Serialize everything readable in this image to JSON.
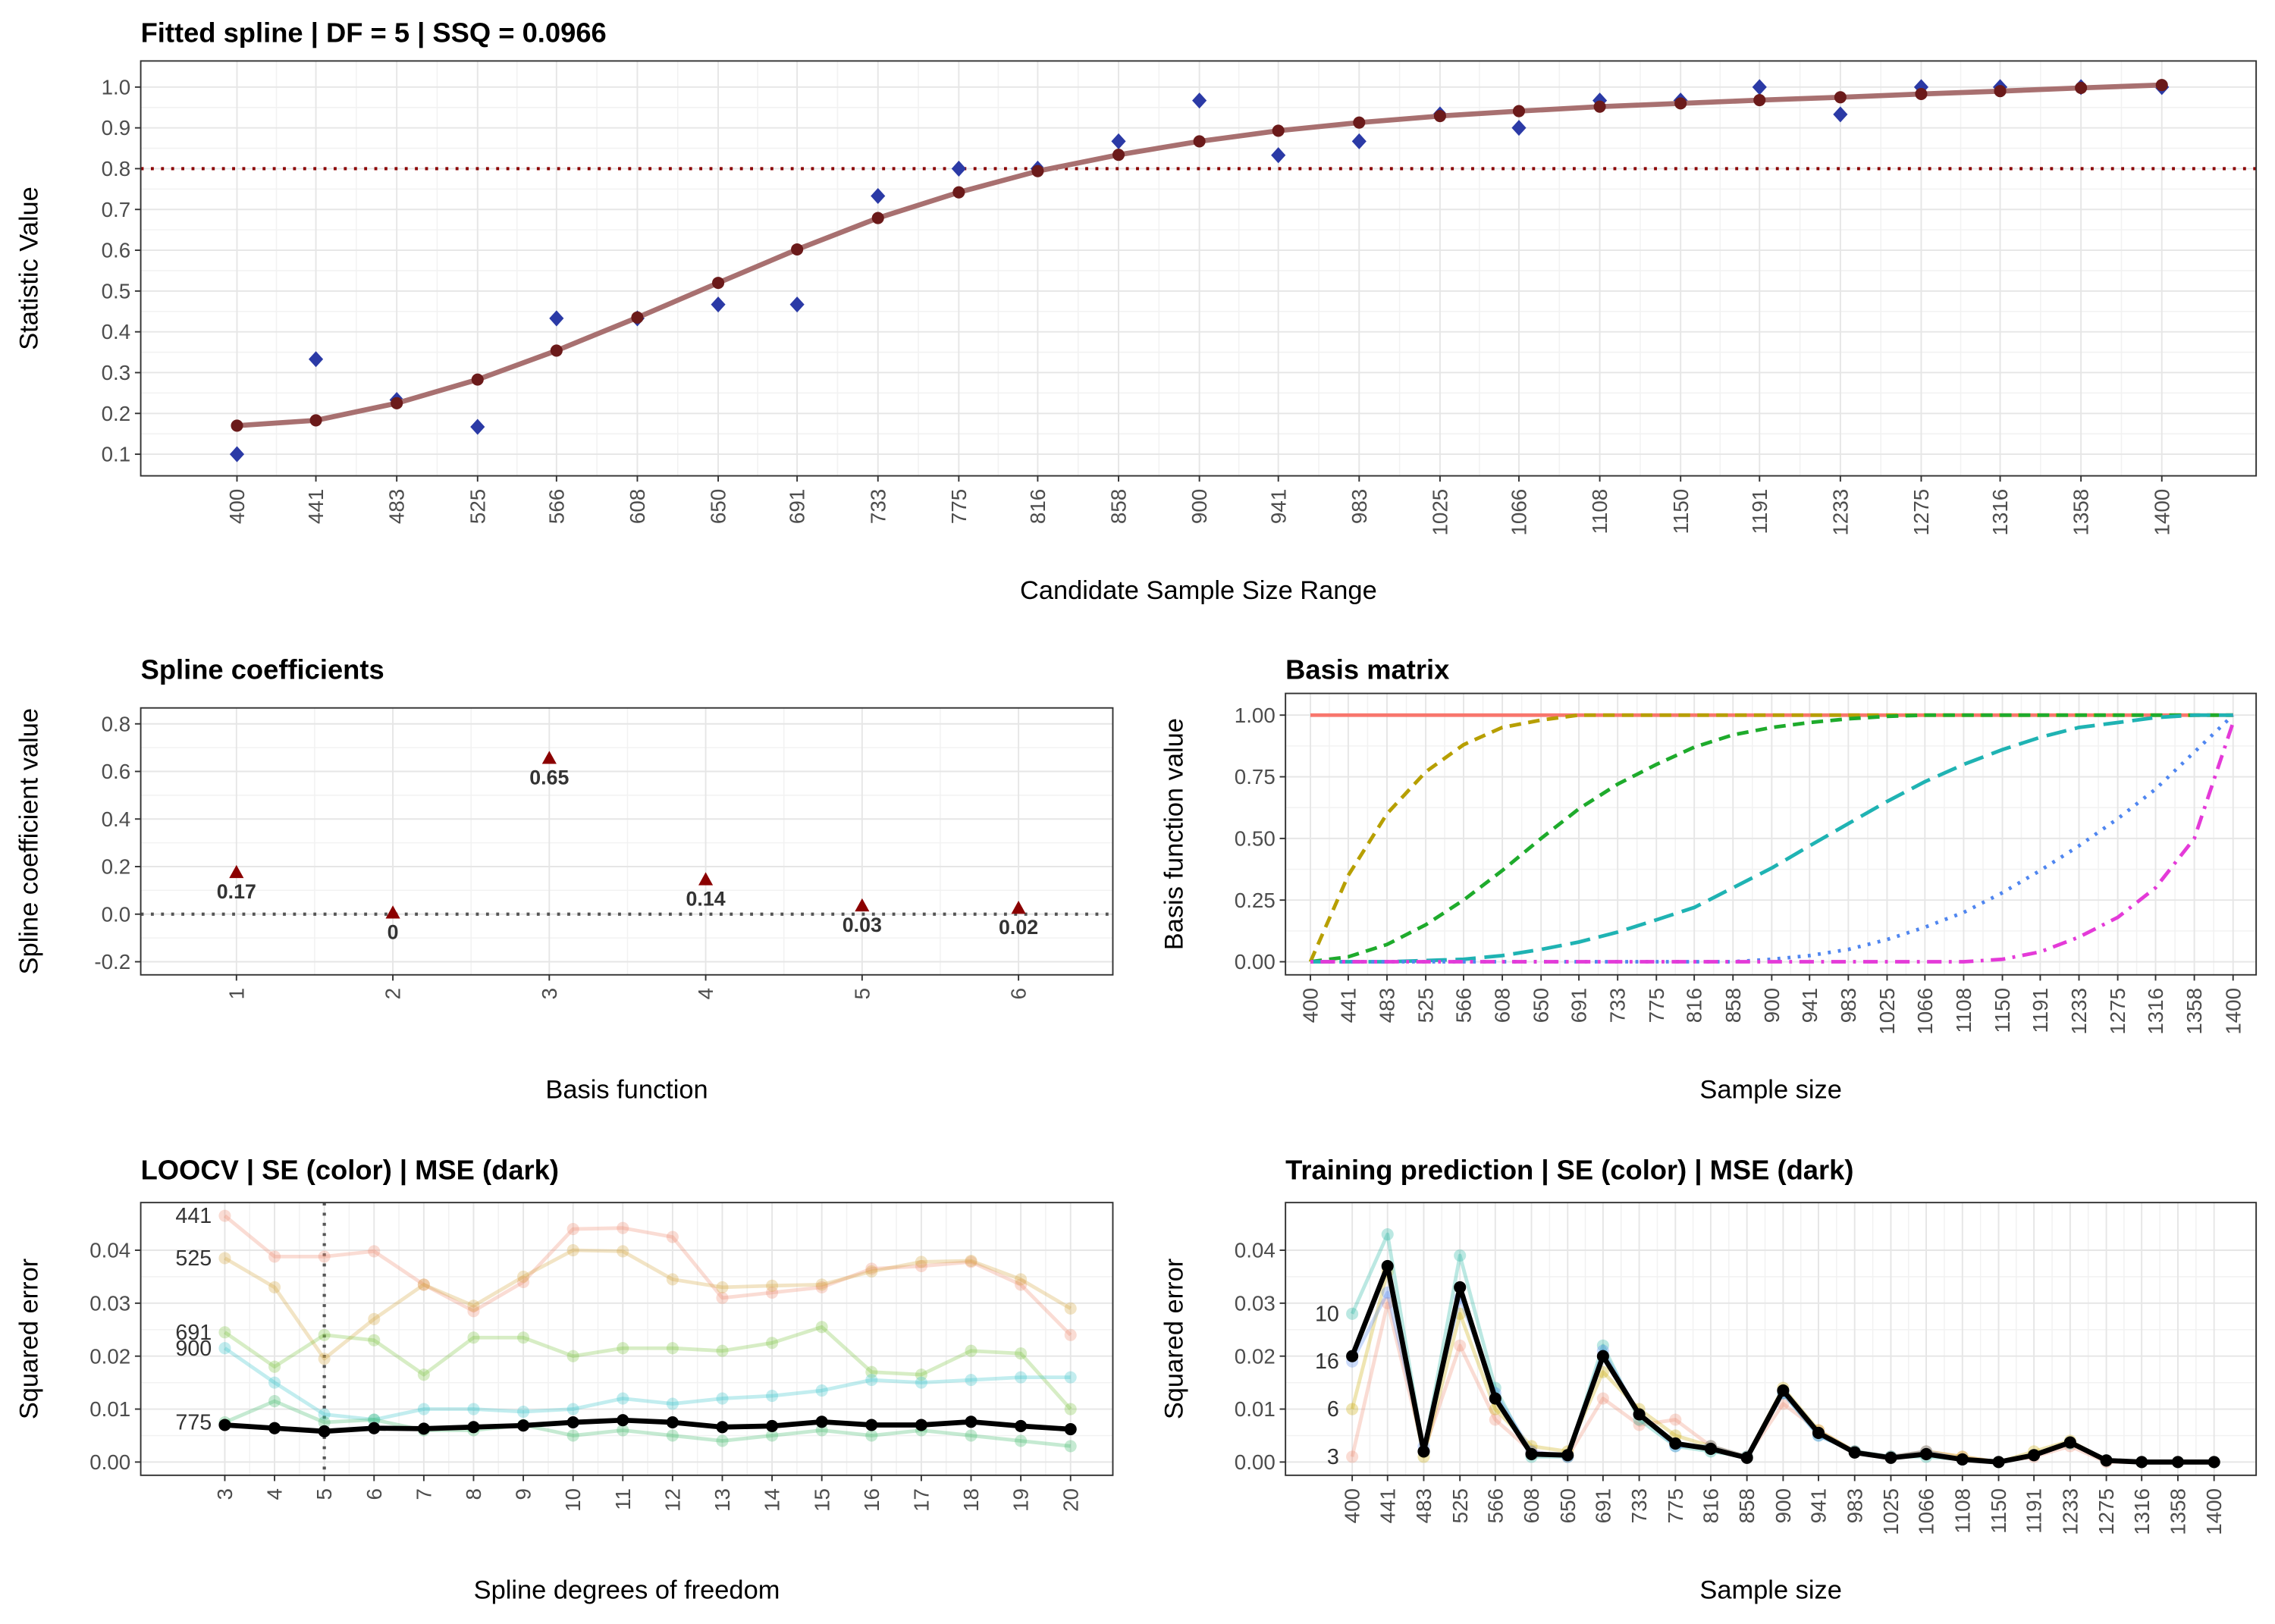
{
  "chart_data": [
    {
      "type": "line",
      "title": "Fitted spline | DF = 5 | SSQ = 0.0966",
      "xlabel": "Candidate Sample Size Range",
      "ylabel": "Statistic Value",
      "x": [
        400,
        441,
        483,
        525,
        566,
        608,
        650,
        691,
        733,
        775,
        816,
        858,
        900,
        941,
        983,
        1025,
        1066,
        1108,
        1150,
        1191,
        1233,
        1275,
        1316,
        1358,
        1400
      ],
      "xlim": [
        350,
        1449
      ],
      "ylim": [
        0.047,
        1.064
      ],
      "xticks": [
        400,
        441,
        483,
        525,
        566,
        608,
        650,
        691,
        733,
        775,
        816,
        858,
        900,
        941,
        983,
        1025,
        1066,
        1108,
        1150,
        1191,
        1233,
        1275,
        1316,
        1358,
        1400
      ],
      "yticks": [
        0.1,
        0.2,
        0.3,
        0.4,
        0.5,
        0.6,
        0.7,
        0.8,
        0.9,
        {
          "value": 1,
          "label": "1.0"
        }
      ],
      "grid": true,
      "hline": {
        "value": 0.8,
        "color": "#8b0000",
        "dash": "dotted"
      },
      "series": [
        {
          "color": "#2b3aa6",
          "marker": "diamond",
          "dash": "none",
          "values": [
            0.1,
            0.333,
            0.233,
            0.167,
            0.433,
            0.433,
            0.467,
            0.467,
            0.733,
            0.8,
            0.8,
            0.867,
            0.967,
            0.833,
            0.867,
            0.933,
            0.9,
            0.967,
            0.967,
            1.0,
            0.933,
            1.0,
            1.0,
            1.0,
            1.0
          ]
        },
        {
          "color": "#6b1a1a",
          "line_color": "#a87070",
          "marker": "circle",
          "dash": "solid",
          "width": 3.5,
          "values": [
            0.17,
            0.183,
            0.225,
            0.283,
            0.354,
            0.435,
            0.52,
            0.602,
            0.679,
            0.742,
            0.794,
            0.834,
            0.867,
            0.893,
            0.913,
            0.929,
            0.941,
            0.952,
            0.96,
            0.968,
            0.975,
            0.983,
            0.99,
            0.998,
            1.005
          ]
        }
      ]
    },
    {
      "type": "scatter",
      "title": "Spline coefficients",
      "xlabel": "Basis function",
      "ylabel": "Spline coefficient value",
      "x": [
        1,
        2,
        3,
        4,
        5,
        6
      ],
      "xlim": [
        0.388,
        6.603
      ],
      "ylim": [
        -0.255,
        0.867
      ],
      "xticks": [
        1,
        2,
        3,
        4,
        5,
        6
      ],
      "yticks": [
        -0.2,
        {
          "value": 0,
          "label": "0.0"
        },
        0.2,
        0.4,
        0.6,
        0.8
      ],
      "grid": true,
      "hline": {
        "value": 0,
        "color": "#555555",
        "dash": "dotted"
      },
      "show_values": true,
      "series": [
        {
          "color": "#8b0000",
          "marker": "triangle",
          "dash": "none",
          "values": [
            0.17,
            0,
            0.65,
            0.14,
            0.03,
            0.02
          ]
        }
      ]
    },
    {
      "type": "line",
      "title": "Basis matrix",
      "xlabel": "Sample size",
      "ylabel": "Basis function value",
      "x": [
        400,
        441,
        483,
        525,
        566,
        608,
        650,
        691,
        733,
        775,
        816,
        858,
        900,
        941,
        983,
        1025,
        1066,
        1108,
        1150,
        1191,
        1233,
        1275,
        1316,
        1358,
        1400
      ],
      "xlim": [
        373,
        1425
      ],
      "ylim": [
        -0.053,
        1.088
      ],
      "xticks": [
        400,
        441,
        483,
        525,
        566,
        608,
        650,
        691,
        733,
        775,
        816,
        858,
        900,
        941,
        983,
        1025,
        1066,
        1108,
        1150,
        1191,
        1233,
        1275,
        1316,
        1358,
        1400
      ],
      "yticks": [
        {
          "value": 0,
          "label": "0.00"
        },
        0.25,
        {
          "value": 0.5,
          "label": "0.50"
        },
        0.75,
        {
          "value": 1,
          "label": "1.00"
        }
      ],
      "grid": true,
      "series": [
        {
          "color": "#f8766d",
          "marker": "none",
          "dash": "solid",
          "width": 2.5,
          "values": [
            1,
            1,
            1,
            1,
            1,
            1,
            1,
            1,
            1,
            1,
            1,
            1,
            1,
            1,
            1,
            1,
            1,
            1,
            1,
            1,
            1,
            1,
            1,
            1,
            1
          ]
        },
        {
          "color": "#b79f00",
          "marker": "none",
          "dash": "dashed",
          "width": 2.5,
          "values": [
            0,
            0.35,
            0.6,
            0.77,
            0.88,
            0.95,
            0.98,
            1,
            1,
            1,
            1,
            1,
            1,
            1,
            1,
            1,
            1,
            1,
            1,
            1,
            1,
            1,
            1,
            1,
            1
          ]
        },
        {
          "color": "#1eab2c",
          "marker": "none",
          "dash": "dashed",
          "width": 2.5,
          "values": [
            0,
            0.02,
            0.07,
            0.15,
            0.25,
            0.37,
            0.5,
            0.62,
            0.72,
            0.8,
            0.87,
            0.92,
            0.95,
            0.97,
            0.985,
            0.995,
            1,
            1,
            1,
            1,
            1,
            1,
            1,
            1,
            1
          ]
        },
        {
          "color": "#1fb3b3",
          "marker": "none",
          "dash": "longdash",
          "width": 2.5,
          "values": [
            0,
            0,
            0,
            0.005,
            0.01,
            0.025,
            0.05,
            0.08,
            0.12,
            0.17,
            0.22,
            0.3,
            0.38,
            0.47,
            0.56,
            0.65,
            0.73,
            0.8,
            0.86,
            0.91,
            0.95,
            0.97,
            0.99,
            1,
            1
          ]
        },
        {
          "color": "#4f86f0",
          "marker": "none",
          "dash": "dotted",
          "width": 2.5,
          "values": [
            0,
            0,
            0,
            0,
            0,
            0,
            0,
            0,
            0,
            0,
            0,
            0,
            0.01,
            0.025,
            0.05,
            0.09,
            0.14,
            0.2,
            0.28,
            0.37,
            0.47,
            0.58,
            0.7,
            0.85,
            1
          ]
        },
        {
          "color": "#e43ad8",
          "marker": "none",
          "dash": "dotdash",
          "width": 2.5,
          "values": [
            0,
            0,
            0,
            0,
            0,
            0,
            0,
            0,
            0,
            0,
            0,
            0,
            0,
            0,
            0,
            0,
            0,
            0,
            0.01,
            0.04,
            0.1,
            0.18,
            0.3,
            0.5,
            0.97
          ]
        }
      ]
    },
    {
      "type": "line",
      "title": "LOOCV | SE (color) | MSE (dark)",
      "xlabel": "Spline degrees of freedom",
      "ylabel": "Squared error",
      "x": [
        3,
        4,
        5,
        6,
        7,
        8,
        9,
        10,
        11,
        12,
        13,
        14,
        15,
        16,
        17,
        18,
        19,
        20
      ],
      "xlim": [
        1.31,
        20.85
      ],
      "ylim": [
        -0.0025,
        0.049
      ],
      "xticks": [
        3,
        4,
        5,
        6,
        7,
        8,
        9,
        10,
        11,
        12,
        13,
        14,
        15,
        16,
        17,
        18,
        19,
        20
      ],
      "yticks": [
        {
          "value": 0,
          "label": "0.00"
        },
        0.01,
        0.02,
        0.03,
        0.04
      ],
      "grid": true,
      "vline": {
        "value": 5,
        "color": "#555555",
        "dash": "dotted"
      },
      "series_labels": "left",
      "series": [
        {
          "name": "441",
          "color": "#f08a70",
          "alpha": 0.3,
          "marker": "circle",
          "dash": "solid",
          "width": 2.5,
          "values": [
            0.0465,
            0.0388,
            0.0388,
            0.0398,
            0.0335,
            0.0285,
            0.034,
            0.044,
            0.0442,
            0.0425,
            0.031,
            0.032,
            0.033,
            0.0365,
            0.037,
            0.0378,
            0.0335,
            0.024
          ]
        },
        {
          "name": "525",
          "color": "#d4a640",
          "alpha": 0.3,
          "marker": "circle",
          "dash": "solid",
          "width": 2.5,
          "values": [
            0.0385,
            0.033,
            0.0195,
            0.027,
            0.0335,
            0.0295,
            0.035,
            0.04,
            0.0398,
            0.0345,
            0.033,
            0.0333,
            0.0335,
            0.036,
            0.0378,
            0.038,
            0.0345,
            0.029
          ]
        },
        {
          "name": "691",
          "color": "#7cc33f",
          "alpha": 0.3,
          "marker": "circle",
          "dash": "solid",
          "width": 2.5,
          "values": [
            0.0245,
            0.018,
            0.024,
            0.023,
            0.0165,
            0.0235,
            0.0235,
            0.02,
            0.0215,
            0.0215,
            0.021,
            0.0225,
            0.0255,
            0.017,
            0.0165,
            0.021,
            0.0205,
            0.01
          ]
        },
        {
          "name": "900",
          "color": "#35c4c9",
          "alpha": 0.3,
          "marker": "circle",
          "dash": "solid",
          "width": 2.5,
          "values": [
            0.0215,
            0.015,
            0.009,
            0.008,
            0.01,
            0.01,
            0.0095,
            0.01,
            0.012,
            0.011,
            0.012,
            0.0125,
            0.0135,
            0.0155,
            0.015,
            0.0155,
            0.016,
            0.016
          ]
        },
        {
          "name": "775",
          "color": "#3fb86a",
          "alpha": 0.3,
          "marker": "circle",
          "dash": "solid",
          "width": 2.5,
          "values": [
            0.0075,
            0.0115,
            0.0075,
            0.008,
            0.006,
            0.006,
            0.007,
            0.005,
            0.006,
            0.005,
            0.004,
            0.005,
            0.006,
            0.005,
            0.006,
            0.005,
            0.004,
            0.003
          ]
        },
        {
          "color": "#000000",
          "marker": "circle",
          "dash": "solid",
          "width": 3.5,
          "values": [
            0.007,
            0.0064,
            0.0058,
            0.0064,
            0.0063,
            0.0066,
            0.0069,
            0.0075,
            0.0079,
            0.0075,
            0.0066,
            0.0068,
            0.0076,
            0.007,
            0.007,
            0.0076,
            0.0068,
            0.0062
          ]
        }
      ]
    },
    {
      "type": "line",
      "title": "Training prediction | SE (color) | MSE (dark)",
      "xlabel": "Sample size",
      "ylabel": "Squared error",
      "x": [
        400,
        441,
        483,
        525,
        566,
        608,
        650,
        691,
        733,
        775,
        816,
        858,
        900,
        941,
        983,
        1025,
        1066,
        1108,
        1150,
        1191,
        1233,
        1275,
        1316,
        1358,
        1400
      ],
      "xlim": [
        322.6,
        1448.8
      ],
      "ylim": [
        -0.0025,
        0.049
      ],
      "xticks": [
        400,
        441,
        483,
        525,
        566,
        608,
        650,
        691,
        733,
        775,
        816,
        858,
        900,
        941,
        983,
        1025,
        1066,
        1108,
        1150,
        1191,
        1233,
        1275,
        1316,
        1358,
        1400
      ],
      "yticks": [
        {
          "value": 0,
          "label": "0.00"
        },
        0.01,
        0.02,
        0.03,
        0.04
      ],
      "grid": true,
      "series_labels": "left",
      "series": [
        {
          "name": "3",
          "color": "#f08a70",
          "alpha": 0.3,
          "marker": "circle",
          "dash": "solid",
          "width": 2.5,
          "values": [
            0.001,
            0.03,
            0.002,
            0.022,
            0.008,
            0.002,
            0.001,
            0.012,
            0.007,
            0.008,
            0.003,
            0.001,
            0.011,
            0.006,
            0.002,
            0.001,
            0.002,
            0.001,
            0,
            0.001,
            0.003,
            0,
            0,
            0,
            0
          ]
        },
        {
          "name": "6",
          "color": "#c9a800",
          "alpha": 0.3,
          "marker": "circle",
          "dash": "solid",
          "width": 2.5,
          "values": [
            0.01,
            0.036,
            0.001,
            0.028,
            0.01,
            0.003,
            0.002,
            0.017,
            0.01,
            0.005,
            0.003,
            0.001,
            0.014,
            0.006,
            0.002,
            0.001,
            0.002,
            0.001,
            0,
            0.002,
            0.004,
            0.0003,
            0,
            0,
            0
          ]
        },
        {
          "name": "10",
          "color": "#1fb3a0",
          "alpha": 0.3,
          "marker": "circle",
          "dash": "solid",
          "width": 2.5,
          "values": [
            0.028,
            0.043,
            0.002,
            0.039,
            0.014,
            0.001,
            0.001,
            0.022,
            0.008,
            0.003,
            0.002,
            0.001,
            0.013,
            0.005,
            0.002,
            0.001,
            0.001,
            0.0005,
            0,
            0.0013,
            0.0035,
            0.0003,
            0,
            0,
            0
          ]
        },
        {
          "name": "16",
          "color": "#4f86f0",
          "alpha": 0.3,
          "marker": "circle",
          "dash": "solid",
          "width": 2.5,
          "values": [
            0.019,
            0.032,
            0.003,
            0.031,
            0.013,
            0.002,
            0.001,
            0.021,
            0.009,
            0.003,
            0.003,
            0.001,
            0.013,
            0.005,
            0.002,
            0.001,
            0.002,
            0.0005,
            0,
            0.0013,
            0.0037,
            0.0003,
            0,
            0,
            0
          ]
        },
        {
          "color": "#000000",
          "marker": "circle",
          "dash": "solid",
          "width": 3.5,
          "values": [
            0.02,
            0.037,
            0.002,
            0.033,
            0.012,
            0.0015,
            0.0013,
            0.02,
            0.009,
            0.0035,
            0.0025,
            0.0008,
            0.0135,
            0.0055,
            0.0018,
            0.0008,
            0.0015,
            0.0005,
            0,
            0.0013,
            0.0037,
            0.0003,
            0,
            0,
            0
          ]
        }
      ]
    }
  ]
}
